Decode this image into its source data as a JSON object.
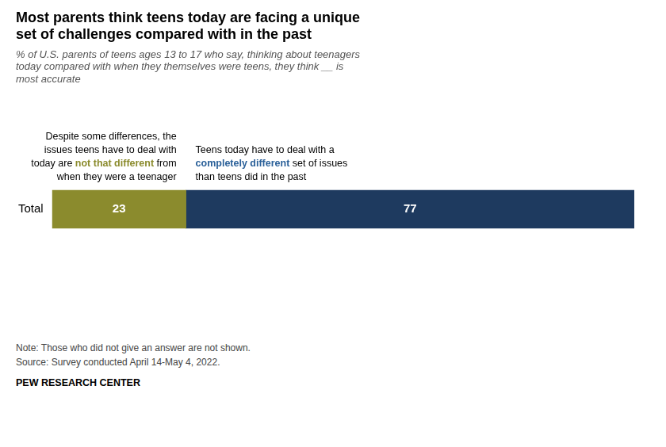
{
  "chart_data": {
    "type": "bar",
    "orientation": "horizontal",
    "stacked": true,
    "title": [
      "Most parents think teens today are facing a unique",
      "set of challenges compared with in the past"
    ],
    "subtitle": [
      "% of U.S. parents of teens ages 13 to 17 who say, thinking about teenagers",
      "today compared with when they themselves were teens, they think __ is",
      "most accurate"
    ],
    "categories": [
      "Total"
    ],
    "series": [
      {
        "color": "#8b8b2d",
        "values": [
          23
        ]
      },
      {
        "color": "#1e3a5f",
        "values": [
          77
        ]
      }
    ],
    "xlim": [
      0,
      100
    ],
    "grid": false,
    "tick_labels": "y",
    "data_labels": true,
    "annotations": [
      [
        [
          {
            "text": "Despite some differences, the"
          }
        ],
        [
          {
            "text": "issues teens have to deal with"
          }
        ],
        [
          {
            "text": "today are "
          },
          {
            "text": "not that different",
            "color": "#8b8b2d"
          },
          {
            "text": " from"
          }
        ],
        [
          {
            "text": "when they were a teenager"
          }
        ]
      ],
      [
        [
          {
            "text": "Teens today have to deal with a"
          }
        ],
        [
          {
            "text": "completely different",
            "color": "#2a6099"
          },
          {
            "text": " set of issues"
          }
        ],
        [
          {
            "text": "than teens did in the past"
          }
        ]
      ]
    ],
    "notes": [
      "Note: Those who did not give an answer are not shown.",
      "Source: Survey conducted April 14-May 4, 2022."
    ],
    "source": "PEW RESEARCH CENTER"
  }
}
